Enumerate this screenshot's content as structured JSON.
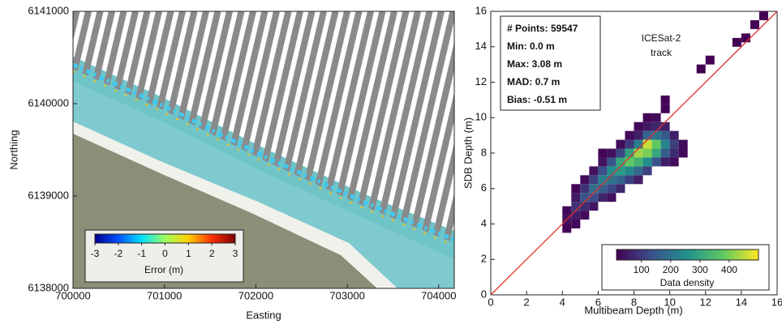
{
  "chart_data": [
    {
      "type": "map",
      "x_label": "Easting",
      "y_label": "Northing",
      "xlim": [
        700000,
        704170
      ],
      "ylim": [
        6138000,
        6141000
      ],
      "xticks": [
        700000,
        701000,
        702000,
        703000,
        704000
      ],
      "yticks": [
        6138000,
        6139000,
        6140000,
        6141000
      ],
      "colorbar": {
        "label": "Error (m)",
        "lim": [
          -3,
          3
        ],
        "ticks": [
          -3,
          -2,
          -1,
          0,
          1,
          2,
          3
        ],
        "colors": [
          "#00008f",
          "#0050ff",
          "#00dfff",
          "#9fff60",
          "#ffd000",
          "#ff3000",
          "#800000"
        ]
      }
    },
    {
      "type": "heatmap",
      "x_label": "Multibeam Depth (m)",
      "y_label": "SDB Depth (m)",
      "xlim": [
        0,
        16
      ],
      "ylim": [
        0,
        16
      ],
      "xticks": [
        0,
        2,
        4,
        6,
        8,
        10,
        12,
        14,
        16
      ],
      "yticks": [
        0,
        2,
        4,
        6,
        8,
        10,
        12,
        14,
        16
      ],
      "cell_size": 0.5,
      "reference_line_color": "#e03030",
      "stats": [
        "# Points: 59547",
        "Min: 0.0 m",
        "Max: 3.08 m",
        "MAD: 0.7 m",
        "Bias: -0.51 m"
      ],
      "track_label": [
        "ICESat-2",
        "track"
      ],
      "x": [
        4.25,
        4.25,
        4.25,
        4.75,
        4.75,
        4.75,
        4.75,
        4.75,
        5.25,
        5.25,
        5.25,
        5.25,
        5.25,
        5.75,
        5.75,
        5.75,
        5.75,
        5.75,
        6.25,
        6.25,
        6.25,
        6.25,
        6.25,
        6.25,
        6.75,
        6.75,
        6.75,
        6.75,
        6.75,
        6.75,
        7.25,
        7.25,
        7.25,
        7.25,
        7.25,
        7.25,
        7.75,
        7.75,
        7.75,
        7.75,
        7.75,
        7.75,
        8.25,
        8.25,
        8.25,
        8.25,
        8.25,
        8.25,
        8.25,
        8.75,
        8.75,
        8.75,
        8.75,
        8.75,
        8.75,
        8.75,
        9.25,
        9.25,
        9.25,
        9.25,
        9.25,
        9.25,
        9.75,
        9.75,
        9.75,
        9.75,
        9.75,
        9.75,
        9.75,
        10.25,
        10.25,
        10.25,
        10.25,
        10.75,
        10.75,
        11.75,
        12.25,
        13.75,
        14.25,
        14.75,
        15.25
      ],
      "y": [
        3.75,
        4.25,
        4.75,
        4.0,
        4.5,
        5.0,
        5.5,
        6.0,
        4.5,
        5.0,
        5.5,
        6.0,
        6.5,
        5.0,
        5.5,
        6.0,
        6.5,
        7.0,
        5.5,
        6.0,
        6.5,
        7.0,
        7.5,
        8.0,
        5.5,
        6.0,
        6.5,
        7.0,
        7.5,
        8.0,
        6.0,
        6.5,
        7.0,
        7.5,
        8.0,
        8.5,
        6.5,
        7.0,
        7.5,
        8.0,
        8.5,
        9.0,
        6.5,
        7.0,
        7.5,
        8.0,
        8.5,
        9.0,
        9.5,
        7.0,
        7.5,
        8.0,
        8.5,
        9.0,
        9.5,
        10.0,
        7.5,
        8.0,
        8.5,
        9.0,
        9.5,
        10.0,
        7.5,
        8.0,
        8.5,
        9.0,
        9.5,
        10.5,
        11.0,
        7.5,
        8.0,
        8.5,
        9.0,
        8.0,
        8.5,
        12.75,
        13.25,
        14.25,
        14.5,
        15.25,
        15.75
      ],
      "density": [
        20,
        40,
        25,
        25,
        60,
        90,
        50,
        20,
        30,
        80,
        140,
        90,
        30,
        50,
        130,
        190,
        110,
        40,
        70,
        160,
        220,
        130,
        40,
        20,
        40,
        120,
        200,
        250,
        140,
        40,
        70,
        170,
        280,
        300,
        120,
        30,
        110,
        240,
        380,
        290,
        100,
        30,
        60,
        180,
        330,
        430,
        220,
        60,
        25,
        110,
        250,
        400,
        460,
        170,
        50,
        20,
        140,
        300,
        380,
        200,
        70,
        30,
        60,
        160,
        230,
        150,
        60,
        20,
        15,
        30,
        80,
        110,
        60,
        25,
        30,
        15,
        15,
        15,
        15,
        15,
        15
      ],
      "colorbar": {
        "label": "Data density",
        "lim": [
          15,
          500
        ],
        "ticks": [
          100,
          200,
          300,
          400
        ],
        "colors": [
          "#440154",
          "#3b528b",
          "#21918c",
          "#5ec962",
          "#fde725"
        ]
      }
    }
  ]
}
